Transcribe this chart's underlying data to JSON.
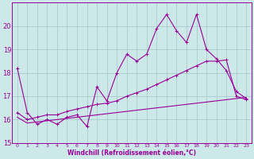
{
  "xlabel": "Windchill (Refroidissement éolien,°C)",
  "xlim": [
    -0.5,
    23.5
  ],
  "ylim": [
    15,
    21
  ],
  "yticks": [
    15,
    16,
    17,
    18,
    19,
    20
  ],
  "xticks": [
    0,
    1,
    2,
    3,
    4,
    5,
    6,
    7,
    8,
    9,
    10,
    11,
    12,
    13,
    14,
    15,
    16,
    17,
    18,
    19,
    20,
    21,
    22,
    23
  ],
  "bg_color": "#cce8e8",
  "grid_color": "#aacccc",
  "line_color": "#990099",
  "line1_x": [
    0,
    1,
    2,
    3,
    4,
    5,
    6,
    7,
    8,
    9,
    10,
    11,
    12,
    13,
    14,
    15,
    16,
    17,
    18,
    19,
    20,
    21,
    22,
    23
  ],
  "line1_y": [
    18.2,
    16.3,
    15.8,
    16.0,
    15.8,
    16.1,
    16.2,
    15.7,
    17.4,
    16.8,
    18.0,
    18.8,
    18.5,
    18.8,
    19.9,
    20.5,
    19.8,
    19.3,
    20.5,
    19.0,
    18.6,
    18.1,
    17.2,
    16.9
  ],
  "line2_x": [
    0,
    1,
    2,
    3,
    4,
    5,
    6,
    7,
    8,
    9,
    10,
    11,
    12,
    13,
    14,
    15,
    16,
    17,
    18,
    19,
    20,
    21,
    22,
    23
  ],
  "line2_y": [
    16.3,
    16.0,
    16.1,
    16.2,
    16.2,
    16.35,
    16.45,
    16.55,
    16.65,
    16.7,
    16.8,
    17.0,
    17.15,
    17.3,
    17.5,
    17.7,
    17.9,
    18.1,
    18.3,
    18.5,
    18.5,
    18.55,
    17.0,
    16.85
  ],
  "line3_x": [
    0,
    1,
    2,
    3,
    4,
    5,
    6,
    7,
    8,
    9,
    10,
    11,
    12,
    13,
    14,
    15,
    16,
    17,
    18,
    19,
    20,
    21,
    22,
    23
  ],
  "line3_y": [
    16.1,
    15.85,
    15.9,
    15.95,
    16.0,
    16.05,
    16.1,
    16.15,
    16.2,
    16.25,
    16.3,
    16.35,
    16.4,
    16.45,
    16.5,
    16.55,
    16.6,
    16.65,
    16.7,
    16.75,
    16.8,
    16.85,
    16.9,
    16.95
  ]
}
